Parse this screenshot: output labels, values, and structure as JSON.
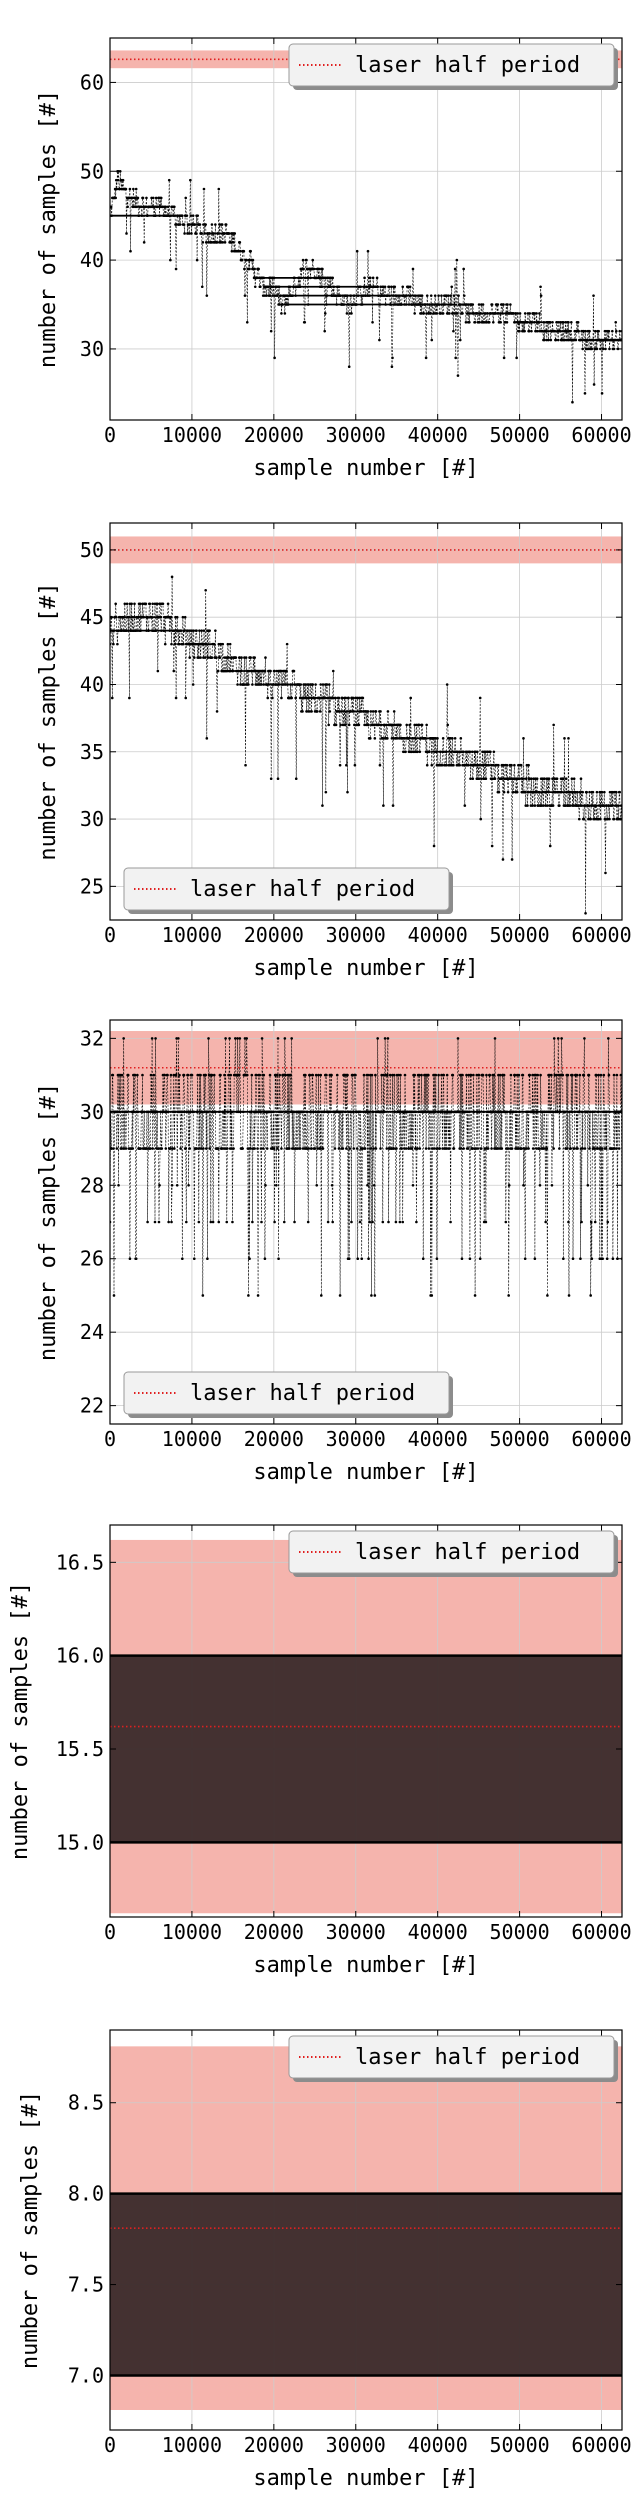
{
  "chart_data": [
    {
      "type": "line",
      "xlabel": "sample number [#]",
      "ylabel": "number of samples [#]",
      "xlim": [
        0,
        62500
      ],
      "ylim": [
        22,
        65
      ],
      "xticks": [
        0,
        10000,
        20000,
        30000,
        40000,
        50000,
        60000
      ],
      "yticks": [
        30,
        40,
        50,
        60
      ],
      "grid": true,
      "legend": {
        "label": "laser half period",
        "placement": "top-right"
      },
      "reference": {
        "value": 62.6,
        "band": [
          61.6,
          63.6
        ],
        "color": "#e74c3c"
      },
      "series": [
        {
          "points": [
            [
              0,
              45
            ],
            [
              1000,
              49
            ],
            [
              2500,
              47
            ],
            [
              4000,
              46
            ],
            [
              6000,
              46
            ],
            [
              8000,
              45
            ],
            [
              10000,
              44
            ],
            [
              12000,
              43
            ],
            [
              14000,
              43
            ],
            [
              16000,
              41
            ],
            [
              17000,
              40
            ],
            [
              18000,
              38
            ],
            [
              19000,
              37
            ],
            [
              20000,
              37
            ],
            [
              21000,
              35
            ],
            [
              22000,
              36
            ],
            [
              23000,
              38
            ],
            [
              24000,
              39
            ],
            [
              25000,
              39
            ],
            [
              26000,
              38
            ],
            [
              27000,
              37
            ],
            [
              28000,
              36
            ],
            [
              29000,
              35
            ],
            [
              30000,
              36
            ],
            [
              32000,
              37
            ],
            [
              34000,
              36
            ],
            [
              36000,
              36
            ],
            [
              38000,
              35
            ],
            [
              40000,
              35
            ],
            [
              42000,
              35
            ],
            [
              44000,
              34
            ],
            [
              46000,
              34
            ],
            [
              48000,
              34
            ],
            [
              50000,
              33
            ],
            [
              52000,
              33
            ],
            [
              54000,
              32
            ],
            [
              56000,
              32
            ],
            [
              58000,
              31
            ],
            [
              60000,
              31
            ],
            [
              62000,
              31
            ]
          ]
        }
      ]
    },
    {
      "type": "line",
      "xlabel": "sample number [#]",
      "ylabel": "number of samples [#]",
      "xlim": [
        0,
        62500
      ],
      "ylim": [
        22.5,
        52
      ],
      "xticks": [
        0,
        10000,
        20000,
        30000,
        40000,
        50000,
        60000
      ],
      "yticks": [
        25,
        30,
        35,
        40,
        45,
        50
      ],
      "grid": true,
      "legend": {
        "label": "laser half period",
        "placement": "bottom-left"
      },
      "reference": {
        "value": 50,
        "band": [
          49,
          51
        ],
        "color": "#e74c3c"
      },
      "series": [
        {
          "points": [
            [
              0,
              44
            ],
            [
              2000,
              45
            ],
            [
              4000,
              45
            ],
            [
              6000,
              45
            ],
            [
              8000,
              44
            ],
            [
              10000,
              43
            ],
            [
              12000,
              43
            ],
            [
              14000,
              42
            ],
            [
              16000,
              41
            ],
            [
              18000,
              41
            ],
            [
              20000,
              40
            ],
            [
              22000,
              40
            ],
            [
              24000,
              39
            ],
            [
              26000,
              39
            ],
            [
              28000,
              38
            ],
            [
              30000,
              38
            ],
            [
              32000,
              37
            ],
            [
              34000,
              37
            ],
            [
              36000,
              36
            ],
            [
              38000,
              36
            ],
            [
              40000,
              35
            ],
            [
              42000,
              35
            ],
            [
              44000,
              34
            ],
            [
              46000,
              34
            ],
            [
              48000,
              33
            ],
            [
              50000,
              33
            ],
            [
              52000,
              32
            ],
            [
              54000,
              32
            ],
            [
              56000,
              32
            ],
            [
              58000,
              31
            ],
            [
              60000,
              31
            ],
            [
              62000,
              31
            ]
          ]
        }
      ]
    },
    {
      "type": "line",
      "xlabel": "sample number [#]",
      "ylabel": "number of samples [#]",
      "xlim": [
        0,
        62500
      ],
      "ylim": [
        21.5,
        32.5
      ],
      "xticks": [
        0,
        10000,
        20000,
        30000,
        40000,
        50000,
        60000
      ],
      "yticks": [
        22,
        24,
        26,
        28,
        30,
        32
      ],
      "grid": true,
      "legend": {
        "label": "laser half period",
        "placement": "bottom-left"
      },
      "reference": {
        "value": 31.2,
        "band": [
          30.2,
          32.2
        ],
        "color": "#e74c3c"
      },
      "series": [
        {
          "points": [
            [
              0,
              30
            ],
            [
              2500,
              30
            ],
            [
              5000,
              30
            ],
            [
              7500,
              30
            ],
            [
              10000,
              30
            ],
            [
              12500,
              30
            ],
            [
              15000,
              30
            ],
            [
              17500,
              30
            ],
            [
              20000,
              30
            ],
            [
              22500,
              30
            ],
            [
              25000,
              30
            ],
            [
              27500,
              30
            ],
            [
              30000,
              30
            ],
            [
              32500,
              30
            ],
            [
              35000,
              30
            ],
            [
              37500,
              30
            ],
            [
              40000,
              30
            ],
            [
              42500,
              30
            ],
            [
              45000,
              30
            ],
            [
              47500,
              30
            ],
            [
              50000,
              30
            ],
            [
              52500,
              30
            ],
            [
              55000,
              30
            ],
            [
              57500,
              30
            ],
            [
              60000,
              30
            ],
            [
              62500,
              30
            ]
          ]
        }
      ]
    },
    {
      "type": "line",
      "xlabel": "sample number [#]",
      "ylabel": "number of samples [#]",
      "xlim": [
        0,
        62500
      ],
      "ylim": [
        14.6,
        16.7
      ],
      "xticks": [
        0,
        10000,
        20000,
        30000,
        40000,
        50000,
        60000
      ],
      "yticks": [
        15.0,
        15.5,
        16.0,
        16.5
      ],
      "grid": true,
      "legend": {
        "label": "laser half period",
        "placement": "top-right"
      },
      "reference": {
        "value": 15.62,
        "band": [
          14.62,
          16.62
        ],
        "color": "#e74c3c"
      },
      "series": [
        {
          "range": [
            15,
            16
          ]
        }
      ]
    },
    {
      "type": "line",
      "xlabel": "sample number [#]",
      "ylabel": "number of samples [#]",
      "xlim": [
        0,
        62500
      ],
      "ylim": [
        6.7,
        8.9
      ],
      "xticks": [
        0,
        10000,
        20000,
        30000,
        40000,
        50000,
        60000
      ],
      "yticks": [
        7.0,
        7.5,
        8.0,
        8.5
      ],
      "grid": true,
      "legend": {
        "label": "laser half period",
        "placement": "top-right"
      },
      "reference": {
        "value": 7.81,
        "band": [
          6.81,
          8.81
        ],
        "color": "#e74c3c"
      },
      "series": [
        {
          "range": [
            7,
            8
          ]
        }
      ]
    }
  ]
}
